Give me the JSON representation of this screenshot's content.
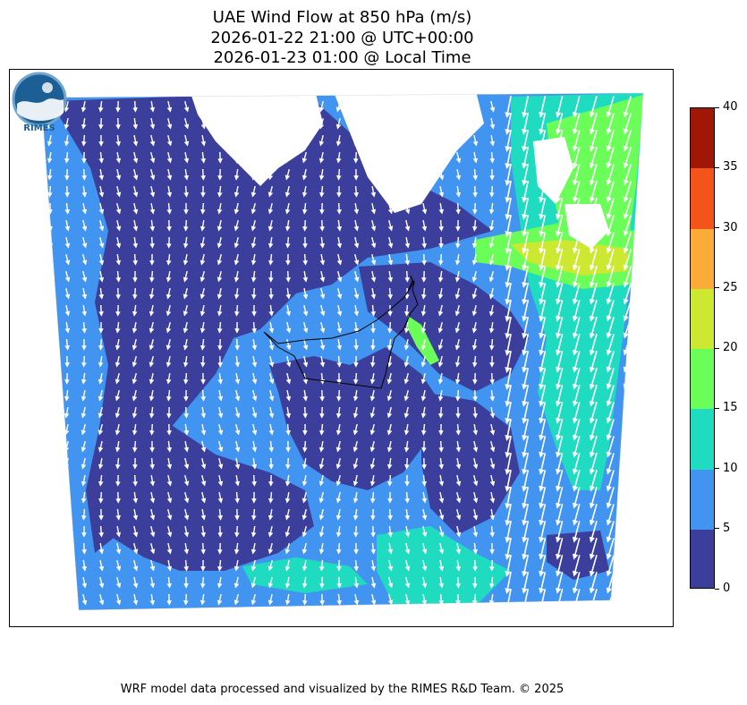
{
  "header": {
    "title_line1": "UAE Wind Flow at 850 hPa (m/s)",
    "title_line2": "2026-01-22 21:00 @ UTC+00:00",
    "title_line3": "2026-01-23 01:00 @ Local Time"
  },
  "colorbar": {
    "ticks": [
      "0",
      "5",
      "10",
      "15",
      "20",
      "25",
      "30",
      "35",
      "40"
    ],
    "levels": [
      0,
      5,
      10,
      15,
      20,
      25,
      30,
      35,
      40
    ],
    "colors": [
      "#3b3f9b",
      "#4195f0",
      "#1fdcc0",
      "#6bfd58",
      "#cde830",
      "#fbab38",
      "#f3541a",
      "#a01705"
    ]
  },
  "map": {
    "region": "UAE",
    "variable": "Wind speed (m/s) at 850 hPa",
    "land_colors": {
      "nodata": "#ffffff",
      "border": "#000000",
      "arrows": "#ffffff"
    }
  },
  "logo": {
    "text": "RIMES"
  },
  "footer": {
    "credit": "WRF model data processed and visualized by the RIMES R&D Team. © 2025"
  }
}
